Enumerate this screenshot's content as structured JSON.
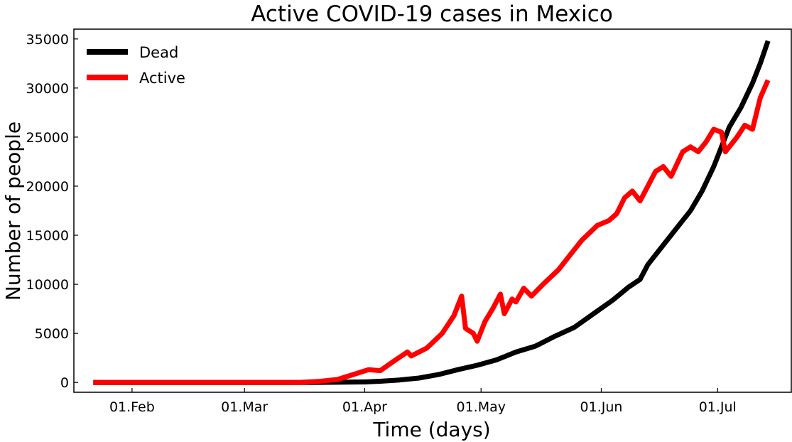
{
  "chart_data": {
    "type": "line",
    "title": "Active COVID-19 cases in Mexico",
    "xlabel": "Time (days)",
    "ylabel": "Number of people",
    "x_start": "2020-01-22",
    "x_end": "2020-07-14",
    "xlim": [
      "2020-01-17",
      "2020-07-20"
    ],
    "ylim": [
      -1000,
      36000
    ],
    "yticks": [
      0,
      5000,
      10000,
      15000,
      20000,
      25000,
      30000,
      35000
    ],
    "xticks": [
      {
        "date": "2020-02-01",
        "label": "01.Feb"
      },
      {
        "date": "2020-03-01",
        "label": "01.Mar"
      },
      {
        "date": "2020-04-01",
        "label": "01.Apr"
      },
      {
        "date": "2020-05-01",
        "label": "01.May"
      },
      {
        "date": "2020-06-01",
        "label": "01.Jun"
      },
      {
        "date": "2020-07-01",
        "label": "01.Jul"
      }
    ],
    "grid": false,
    "legend_position": "top-left",
    "series": [
      {
        "name": "Dead",
        "color": "#000000",
        "points": [
          [
            "2020-01-22",
            0
          ],
          [
            "2020-03-18",
            0
          ],
          [
            "2020-03-25",
            20
          ],
          [
            "2020-04-01",
            50
          ],
          [
            "2020-04-05",
            120
          ],
          [
            "2020-04-10",
            250
          ],
          [
            "2020-04-15",
            450
          ],
          [
            "2020-04-20",
            800
          ],
          [
            "2020-04-25",
            1300
          ],
          [
            "2020-04-30",
            1750
          ],
          [
            "2020-05-05",
            2300
          ],
          [
            "2020-05-10",
            3100
          ],
          [
            "2020-05-15",
            3700
          ],
          [
            "2020-05-20",
            4700
          ],
          [
            "2020-05-25",
            5600
          ],
          [
            "2020-05-30",
            7000
          ],
          [
            "2020-06-04",
            8400
          ],
          [
            "2020-06-08",
            9700
          ],
          [
            "2020-06-11",
            10500
          ],
          [
            "2020-06-13",
            12000
          ],
          [
            "2020-06-16",
            13500
          ],
          [
            "2020-06-20",
            15500
          ],
          [
            "2020-06-24",
            17500
          ],
          [
            "2020-06-27",
            19500
          ],
          [
            "2020-06-30",
            22000
          ],
          [
            "2020-07-02",
            24000
          ],
          [
            "2020-07-04",
            26000
          ],
          [
            "2020-07-07",
            28000
          ],
          [
            "2020-07-10",
            30500
          ],
          [
            "2020-07-12",
            32500
          ],
          [
            "2020-07-14",
            34800
          ]
        ]
      },
      {
        "name": "Active",
        "color": "#ff0000",
        "points": [
          [
            "2020-01-22",
            0
          ],
          [
            "2020-03-15",
            0
          ],
          [
            "2020-03-20",
            100
          ],
          [
            "2020-03-25",
            300
          ],
          [
            "2020-03-29",
            800
          ],
          [
            "2020-04-02",
            1300
          ],
          [
            "2020-04-05",
            1200
          ],
          [
            "2020-04-09",
            2300
          ],
          [
            "2020-04-12",
            3100
          ],
          [
            "2020-04-13",
            2700
          ],
          [
            "2020-04-17",
            3500
          ],
          [
            "2020-04-21",
            5000
          ],
          [
            "2020-04-24",
            6800
          ],
          [
            "2020-04-26",
            8800
          ],
          [
            "2020-04-27",
            5500
          ],
          [
            "2020-04-29",
            5000
          ],
          [
            "2020-04-30",
            4200
          ],
          [
            "2020-05-02",
            6200
          ],
          [
            "2020-05-04",
            7500
          ],
          [
            "2020-05-06",
            9000
          ],
          [
            "2020-05-07",
            7000
          ],
          [
            "2020-05-09",
            8500
          ],
          [
            "2020-05-10",
            8200
          ],
          [
            "2020-05-12",
            9600
          ],
          [
            "2020-05-14",
            8800
          ],
          [
            "2020-05-17",
            10000
          ],
          [
            "2020-05-21",
            11500
          ],
          [
            "2020-05-24",
            13000
          ],
          [
            "2020-05-27",
            14500
          ],
          [
            "2020-05-31",
            16000
          ],
          [
            "2020-06-03",
            16500
          ],
          [
            "2020-06-05",
            17200
          ],
          [
            "2020-06-07",
            18800
          ],
          [
            "2020-06-09",
            19500
          ],
          [
            "2020-06-11",
            18500
          ],
          [
            "2020-06-15",
            21500
          ],
          [
            "2020-06-17",
            22000
          ],
          [
            "2020-06-19",
            21000
          ],
          [
            "2020-06-22",
            23500
          ],
          [
            "2020-06-24",
            24000
          ],
          [
            "2020-06-26",
            23500
          ],
          [
            "2020-06-28",
            24500
          ],
          [
            "2020-06-30",
            25800
          ],
          [
            "2020-07-02",
            25500
          ],
          [
            "2020-07-03",
            23500
          ],
          [
            "2020-07-06",
            25000
          ],
          [
            "2020-07-08",
            26200
          ],
          [
            "2020-07-10",
            25800
          ],
          [
            "2020-07-12",
            29000
          ],
          [
            "2020-07-14",
            30800
          ]
        ]
      }
    ]
  }
}
